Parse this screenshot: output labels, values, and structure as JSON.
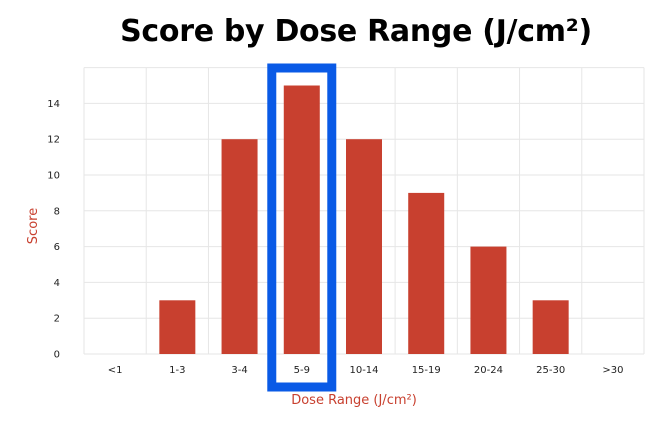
{
  "chart_data": {
    "type": "bar",
    "title": "Score by Dose Range (J/cm²)",
    "xlabel": "Dose Range (J/cm²)",
    "ylabel": "Score",
    "categories": [
      "<1",
      "1-3",
      "3-4",
      "5-9",
      "10-14",
      "15-19",
      "20-24",
      "25-30",
      ">30"
    ],
    "values": [
      0,
      3,
      12,
      15,
      12,
      9,
      6,
      3,
      0
    ],
    "yticks": [
      "0",
      "2",
      "4",
      "6",
      "8",
      "10",
      "12",
      "14"
    ],
    "ylim": [
      0,
      16
    ],
    "grid": true,
    "highlighted_category": "5-9",
    "colors": {
      "bar": "#c8402f",
      "highlight": "#0a5ae6",
      "axis_label": "#c8402f",
      "grid": "#e6e6e6"
    }
  }
}
